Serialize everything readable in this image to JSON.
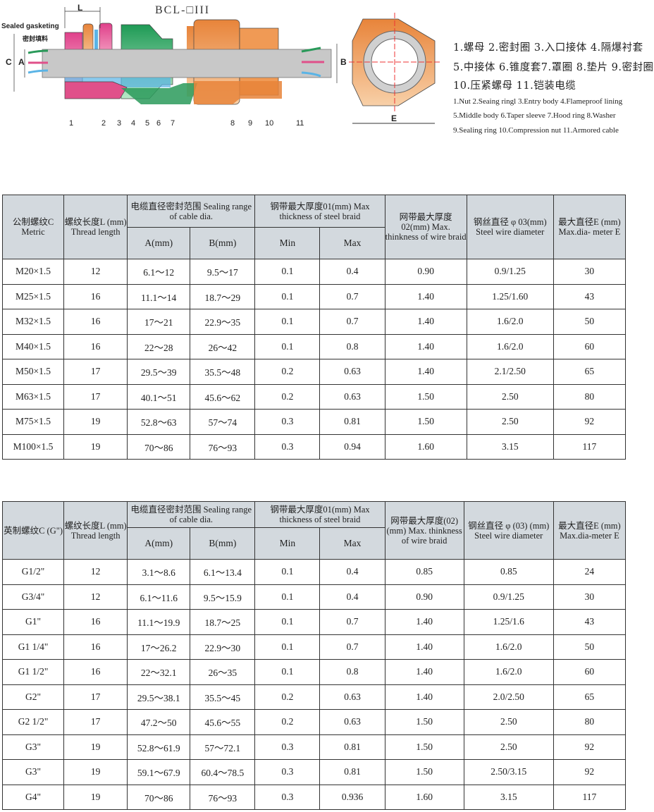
{
  "diagram": {
    "model": "BCL-□III",
    "gasket_en": "Sealed gasketing",
    "gasket_zh": "密封填料",
    "dims": {
      "L": "L",
      "A": "A",
      "B": "B",
      "C": "C",
      "E": "E"
    },
    "part_numbers": [
      "1",
      "2",
      "3",
      "4",
      "5",
      "6",
      "7",
      "8",
      "9",
      "10",
      "11"
    ],
    "colors": {
      "orange": "#e8843a",
      "green": "#2a9a5a",
      "pink": "#e0508a",
      "blue": "#5ab4e6",
      "grey": "#c8c8c8"
    }
  },
  "legend": {
    "zh": [
      "1.螺母 2.密封圈 3.入口接体 4.隔爆衬套",
      "5.中接体 6.锥度套7.罩圈 8.垫片 9.密封圈",
      "10.压紧螺母 11.铠装电缆"
    ],
    "en": [
      "1.Nut 2.Seaing ringl 3.Entry body 4.Flameproof lining",
      "5.Middle body 6.Taper sleeve 7.Hood ring 8.Washer",
      "9.Sealing ring 10.Compression nut 11.Armored cable"
    ]
  },
  "metric_table": {
    "headers": {
      "thread": "公制螺纹C Metric",
      "length": "螺纹长度L (mm) Thread length",
      "sealing": "电缆直径密封范围 Sealing range of cable dia.",
      "a": "A(mm)",
      "b": "B(mm)",
      "steel": "钢带最大厚度01(mm) Max thickness of steel braid",
      "min": "Min",
      "max": "Max",
      "braid": "网带最大厚度 02(mm) Max. thinkness of wire braid",
      "wire": "钢丝直径 φ 03(mm) Steel wire diameter",
      "e": "最大直径E (mm) Max.dia- meter E"
    },
    "rows": [
      [
        "M20×1.5",
        "12",
        "6.1～12",
        "9.5～17",
        "0.1",
        "0.4",
        "0.90",
        "0.9/1.25",
        "30"
      ],
      [
        "M25×1.5",
        "16",
        "11.1～14",
        "18.7～29",
        "0.1",
        "0.7",
        "1.40",
        "1.25/1.60",
        "43"
      ],
      [
        "M32×1.5",
        "16",
        "17～21",
        "22.9～35",
        "0.1",
        "0.7",
        "1.40",
        "1.6/2.0",
        "50"
      ],
      [
        "M40×1.5",
        "16",
        "22～28",
        "26～42",
        "0.1",
        "0.8",
        "1.40",
        "1.6/2.0",
        "60"
      ],
      [
        "M50×1.5",
        "17",
        "29.5～39",
        "35.5～48",
        "0.2",
        "0.63",
        "1.40",
        "2.1/2.50",
        "65"
      ],
      [
        "M63×1.5",
        "17",
        "40.1～51",
        "45.6～62",
        "0.2",
        "0.63",
        "1.50",
        "2.50",
        "80"
      ],
      [
        "M75×1.5",
        "19",
        "52.8～63",
        "57～74",
        "0.3",
        "0.81",
        "1.50",
        "2.50",
        "92"
      ],
      [
        "M100×1.5",
        "19",
        "70～86",
        "76～93",
        "0.3",
        "0.94",
        "1.60",
        "3.15",
        "117"
      ]
    ]
  },
  "imperial_table": {
    "headers": {
      "thread": "英制螺纹C (G\")",
      "length": "螺纹长度L (mm) Thread length",
      "sealing": "电缆直径密封范围 Sealing range of cable dia.",
      "a": "A(mm)",
      "b": "B(mm)",
      "steel": "钢带最大厚度01(mm) Max thickness of steel braid",
      "min": "Min",
      "max": "Max",
      "braid": "网带最大厚度(02) (mm) Max. thinkness of wire braid",
      "wire": "钢丝直径 φ (03) (mm) Steel wire diameter",
      "e": "最大直径E (mm) Max.dia-meter E"
    },
    "rows": [
      [
        "G1/2\"",
        "12",
        "3.1～8.6",
        "6.1～13.4",
        "0.1",
        "0.4",
        "0.85",
        "0.85",
        "24"
      ],
      [
        "G3/4\"",
        "12",
        "6.1～11.6",
        "9.5～15.9",
        "0.1",
        "0.4",
        "0.90",
        "0.9/1.25",
        "30"
      ],
      [
        "G1\"",
        "16",
        "11.1～19.9",
        "18.7～25",
        "0.1",
        "0.7",
        "1.40",
        "1.25/1.6",
        "43"
      ],
      [
        "G1 1/4\"",
        "16",
        "17～26.2",
        "22.9～30",
        "0.1",
        "0.7",
        "1.40",
        "1.6/2.0",
        "50"
      ],
      [
        "G1 1/2\"",
        "16",
        "22～32.1",
        "26～35",
        "0.1",
        "0.8",
        "1.40",
        "1.6/2.0",
        "60"
      ],
      [
        "G2\"",
        "17",
        "29.5～38.1",
        "35.5～45",
        "0.2",
        "0.63",
        "1.40",
        "2.0/2.50",
        "65"
      ],
      [
        "G2 1/2\"",
        "17",
        "47.2～50",
        "45.6～55",
        "0.2",
        "0.63",
        "1.50",
        "2.50",
        "80"
      ],
      [
        "G3\"",
        "19",
        "52.8～61.9",
        "57～72.1",
        "0.3",
        "0.81",
        "1.50",
        "2.50",
        "92"
      ],
      [
        "G3\"",
        "19",
        "59.1～67.9",
        "60.4～78.5",
        "0.3",
        "0.81",
        "1.50",
        "2.50/3.15",
        "92"
      ],
      [
        "G4\"",
        "19",
        "70～86",
        "76～93",
        "0.3",
        "0.936",
        "1.60",
        "3.15",
        "117"
      ]
    ]
  }
}
